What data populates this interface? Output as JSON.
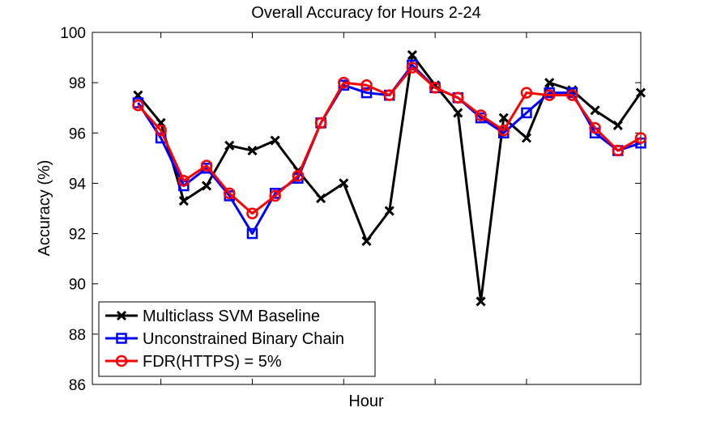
{
  "chart_data": {
    "type": "line",
    "title": "Overall Accuracy for Hours 2-24",
    "xlabel": "Hour",
    "ylabel": "Accuracy (%)",
    "x": [
      2,
      3,
      4,
      5,
      6,
      7,
      8,
      9,
      10,
      11,
      12,
      13,
      14,
      15,
      16,
      17,
      18,
      19,
      20,
      21,
      22,
      23,
      24
    ],
    "xlim": [
      0,
      24
    ],
    "xticks": [
      3,
      7,
      11,
      15,
      19
    ],
    "ylim": [
      86,
      100
    ],
    "yticks": [
      86,
      88,
      90,
      92,
      94,
      96,
      98,
      100
    ],
    "grid": false,
    "legend_position": "bottom-left",
    "series": [
      {
        "name": "Multiclass SVM Baseline",
        "color": "#000000",
        "marker": "x",
        "values": [
          97.5,
          96.4,
          93.3,
          93.9,
          95.5,
          95.3,
          95.7,
          94.5,
          93.4,
          94.0,
          91.7,
          92.9,
          99.1,
          97.9,
          96.8,
          89.3,
          96.6,
          95.8,
          98.0,
          97.7,
          96.9,
          96.3,
          97.6
        ]
      },
      {
        "name": "Unconstrained Binary Chain",
        "color": "#0000ff",
        "marker": "square",
        "values": [
          97.2,
          95.8,
          93.9,
          94.6,
          93.5,
          92.0,
          93.6,
          94.2,
          96.4,
          97.9,
          97.6,
          97.5,
          98.7,
          97.8,
          97.4,
          96.6,
          96.0,
          96.8,
          97.6,
          97.6,
          96.0,
          95.3,
          95.6
        ]
      },
      {
        "name": "FDR(HTTPS) = 5%",
        "color": "#ff0000",
        "marker": "circle",
        "values": [
          97.1,
          96.1,
          94.1,
          94.7,
          93.6,
          92.8,
          93.5,
          94.3,
          96.4,
          98.0,
          97.9,
          97.5,
          98.6,
          97.8,
          97.4,
          96.7,
          96.1,
          97.6,
          97.5,
          97.5,
          96.2,
          95.3,
          95.8
        ]
      }
    ]
  }
}
